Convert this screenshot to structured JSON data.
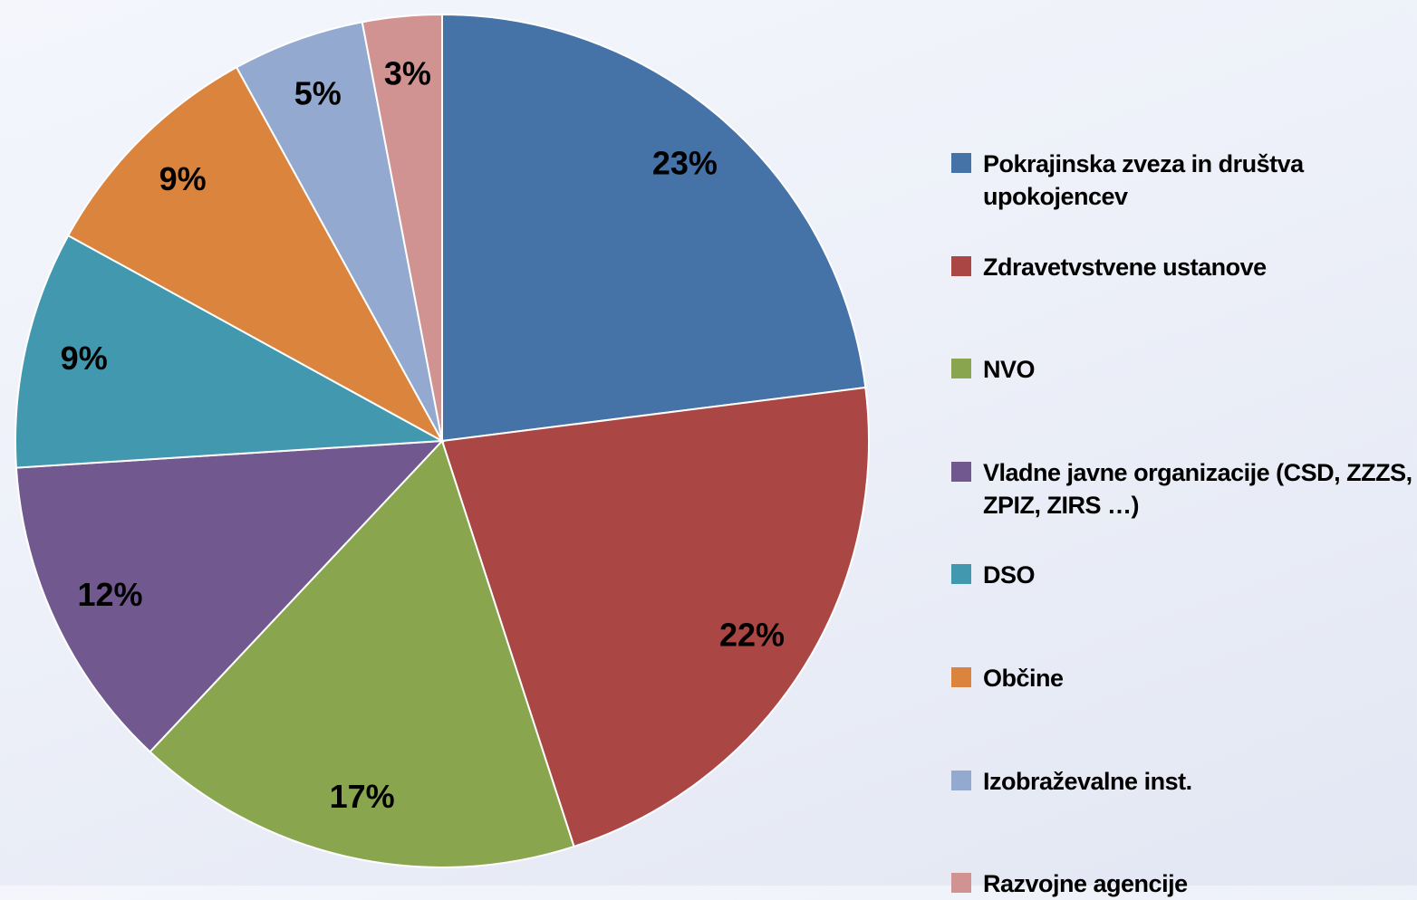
{
  "chart_data": {
    "type": "pie",
    "categories": [
      "Pokrajinska zveza in društva upokojencev",
      "Zdravetvstvene ustanove",
      "NVO",
      "Vladne javne organizacije (CSD, ZZZS, ZPIZ, ZIRS …)",
      "DSO",
      "Občine",
      "Izobraževalne inst.",
      "Razvojne agencije"
    ],
    "values": [
      23,
      22,
      17,
      12,
      9,
      9,
      5,
      3
    ],
    "value_labels": [
      "23%",
      "22%",
      "17%",
      "12%",
      "9%",
      "9%",
      "5%",
      "3%"
    ],
    "colors": [
      "#4572a7",
      "#aa4643",
      "#89a54e",
      "#71588f",
      "#4198af",
      "#db843d",
      "#93a9cf",
      "#d19392"
    ],
    "legend": "right"
  }
}
